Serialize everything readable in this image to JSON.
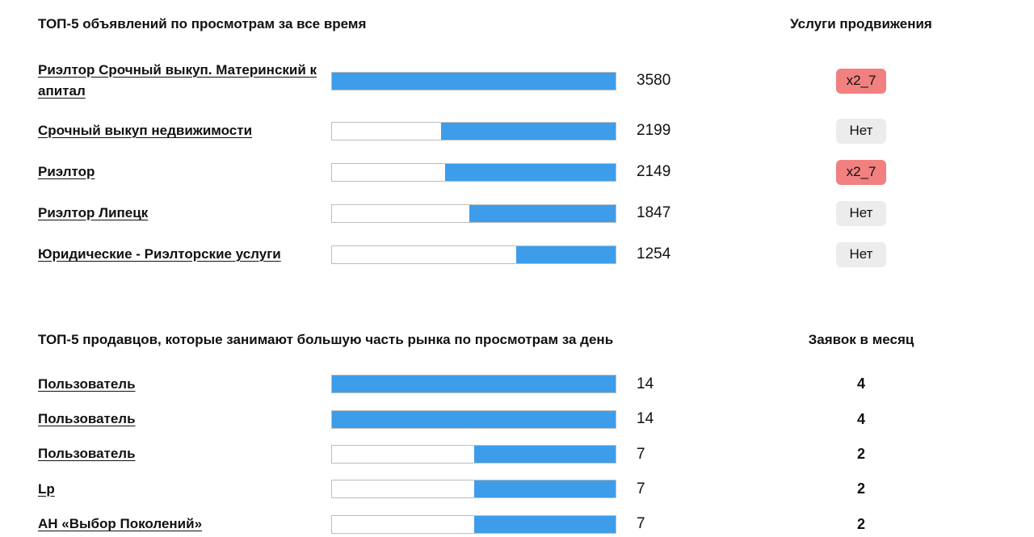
{
  "colors": {
    "bar_fill": "#3d9dea",
    "bar_border": "#bdbdbd",
    "promo_bg": "#f28080",
    "none_bg": "#ececec",
    "text": "#111111"
  },
  "section1": {
    "title": "ТОП-5 объявлений по просмотрам за все время",
    "right_header": "Услуги продвижения",
    "max_value": 3580,
    "rows": [
      {
        "label": "Риэлтор Срочный выкуп. Материнский капитал",
        "views": "3580",
        "value": 3580,
        "badge": "x2_7",
        "badge_type": "promo"
      },
      {
        "label": "Срочный выкуп недвижимости",
        "views": "2199",
        "value": 2199,
        "badge": "Нет",
        "badge_type": "none"
      },
      {
        "label": "Риэлтор",
        "views": "2149",
        "value": 2149,
        "badge": "x2_7",
        "badge_type": "promo"
      },
      {
        "label": "Риэлтор Липецк",
        "views": "1847",
        "value": 1847,
        "badge": "Нет",
        "badge_type": "none"
      },
      {
        "label": "Юридические - Риэлторские услуги",
        "views": "1254",
        "value": 1254,
        "badge": "Нет",
        "badge_type": "none"
      }
    ]
  },
  "section2": {
    "title": "ТОП-5 продавцов, которые занимают большую часть рынка по просмотрам за день",
    "right_header": "Заявок в месяц",
    "max_value": 14,
    "rows": [
      {
        "label": "Пользователь",
        "views": "14",
        "value": 14,
        "requests": "4"
      },
      {
        "label": "Пользователь",
        "views": "14",
        "value": 14,
        "requests": "4"
      },
      {
        "label": "Пользователь",
        "views": "7",
        "value": 7,
        "requests": "2"
      },
      {
        "label": "Lp",
        "views": "7",
        "value": 7,
        "requests": "2"
      },
      {
        "label": "АН «Выбор Поколений»",
        "views": "7",
        "value": 7,
        "requests": "2"
      }
    ]
  },
  "chart_data": [
    {
      "type": "bar",
      "orientation": "horizontal",
      "fill_alignment": "right",
      "title": "ТОП-5 объявлений по просмотрам за все время",
      "categories": [
        "Риэлтор Срочный выкуп. Материнский капитал",
        "Срочный выкуп недвижимости",
        "Риэлтор",
        "Риэлтор Липецк",
        "Юридические - Риэлторские услуги"
      ],
      "values": [
        3580,
        2199,
        2149,
        1847,
        1254
      ],
      "xlim": [
        0,
        3580
      ],
      "extra_column": {
        "label": "Услуги продвижения",
        "values": [
          "x2_7",
          "Нет",
          "x2_7",
          "Нет",
          "Нет"
        ]
      }
    },
    {
      "type": "bar",
      "orientation": "horizontal",
      "fill_alignment": "right",
      "title": "ТОП-5 продавцов, которые занимают большую часть рынка по просмотрам за день",
      "categories": [
        "Пользователь",
        "Пользователь",
        "Пользователь",
        "Lp",
        "АН «Выбор Поколений»"
      ],
      "values": [
        14,
        14,
        7,
        7,
        7
      ],
      "xlim": [
        0,
        14
      ],
      "extra_column": {
        "label": "Заявок в месяц",
        "values": [
          4,
          4,
          2,
          2,
          2
        ]
      }
    }
  ]
}
